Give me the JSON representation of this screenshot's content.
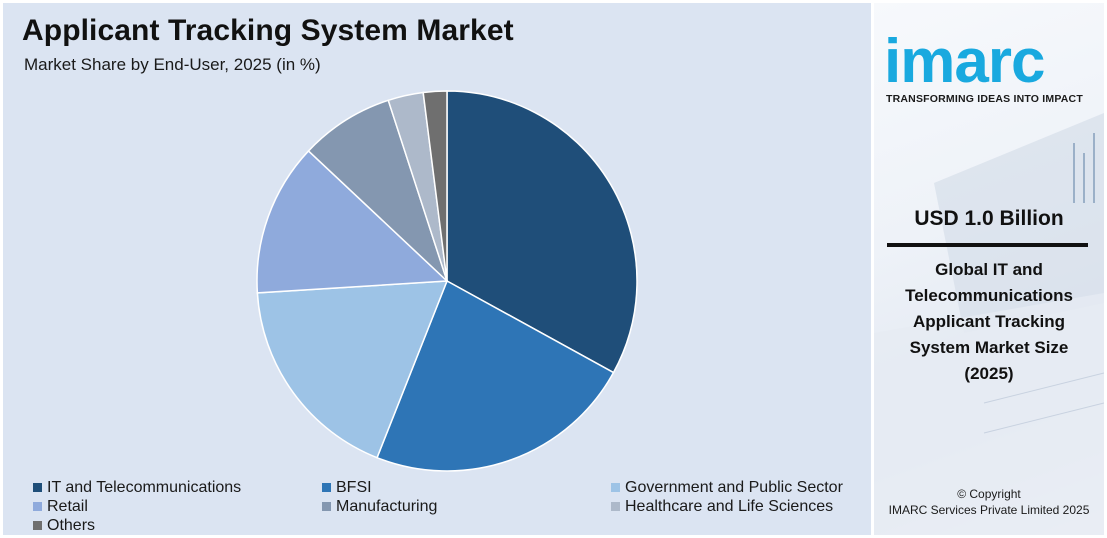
{
  "chart_data": {
    "type": "pie",
    "title": "Applicant Tracking System Market",
    "subtitle": "Market Share by End-User, 2025 (in %)",
    "categories": [
      "IT and Telecommunications",
      "BFSI",
      "Government and Public Sector",
      "Retail",
      "Manufacturing",
      "Healthcare and Life Sciences",
      "Others"
    ],
    "values": [
      33,
      23,
      18,
      13,
      8,
      3,
      2
    ],
    "colors": [
      "#1f4e79",
      "#2e75b6",
      "#9dc3e6",
      "#8faadc",
      "#8497b0",
      "#adb9ca",
      "#6f6f6f"
    ],
    "legend_position": "bottom"
  },
  "sidebar": {
    "logo_text": "imarc",
    "tagline": "TRANSFORMING IDEAS INTO IMPACT",
    "value": "USD 1.0 Billion",
    "description": "Global IT and Telecommunications Applicant Tracking System Market Size (2025)",
    "copyright_line1": "© Copyright",
    "copyright_line2": "IMARC Services Private Limited 2025"
  }
}
